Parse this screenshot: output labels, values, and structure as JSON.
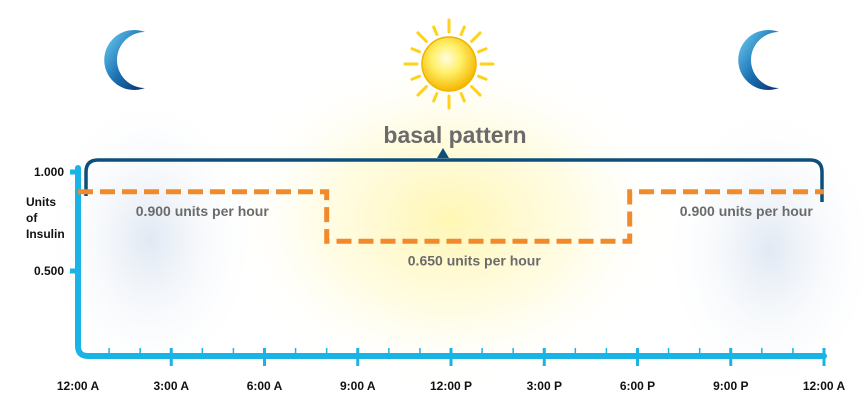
{
  "chart_data": {
    "type": "line",
    "title": "basal pattern",
    "ylabel": "Units of Insulin",
    "ylabel_lines": [
      "Units",
      "of",
      "Insulin"
    ],
    "xlabel": "",
    "x_ticks": [
      "12:00 A",
      "3:00 A",
      "6:00 A",
      "9:00 A",
      "12:00 P",
      "3:00 P",
      "6:00 P",
      "9:00 P",
      "12:00 A"
    ],
    "y_ticks": [
      "1.000",
      "0.500"
    ],
    "xlim_hours": [
      0,
      24
    ],
    "ylim": [
      0,
      1.05
    ],
    "series": [
      {
        "color": "#f08a2a",
        "style": "dashed",
        "points": [
          {
            "hour": 0,
            "value": 0.9
          },
          {
            "hour": 8,
            "value": 0.9
          },
          {
            "hour": 8,
            "value": 0.65
          },
          {
            "hour": 17.75,
            "value": 0.65
          },
          {
            "hour": 17.75,
            "value": 0.9
          },
          {
            "hour": 24,
            "value": 0.9
          }
        ]
      }
    ],
    "annotations": [
      {
        "text": "0.900 units per hour",
        "hour": 4,
        "value": 0.9
      },
      {
        "text": "0.650 units per hour",
        "hour": 12.75,
        "value": 0.65
      },
      {
        "text": "0.900 units per hour",
        "hour": 21.5,
        "value": 0.9
      }
    ],
    "grid": false,
    "legend": "none"
  },
  "colors": {
    "axis": "#1ab3e6",
    "bracket": "#0d4f7a",
    "series": "#f08a2a",
    "label": "#6b6b6b",
    "moon": "#1a6fb0",
    "sun": "#ffd21a"
  },
  "icons": {
    "left": "moon-icon",
    "center": "sun-icon",
    "right": "moon-icon"
  }
}
